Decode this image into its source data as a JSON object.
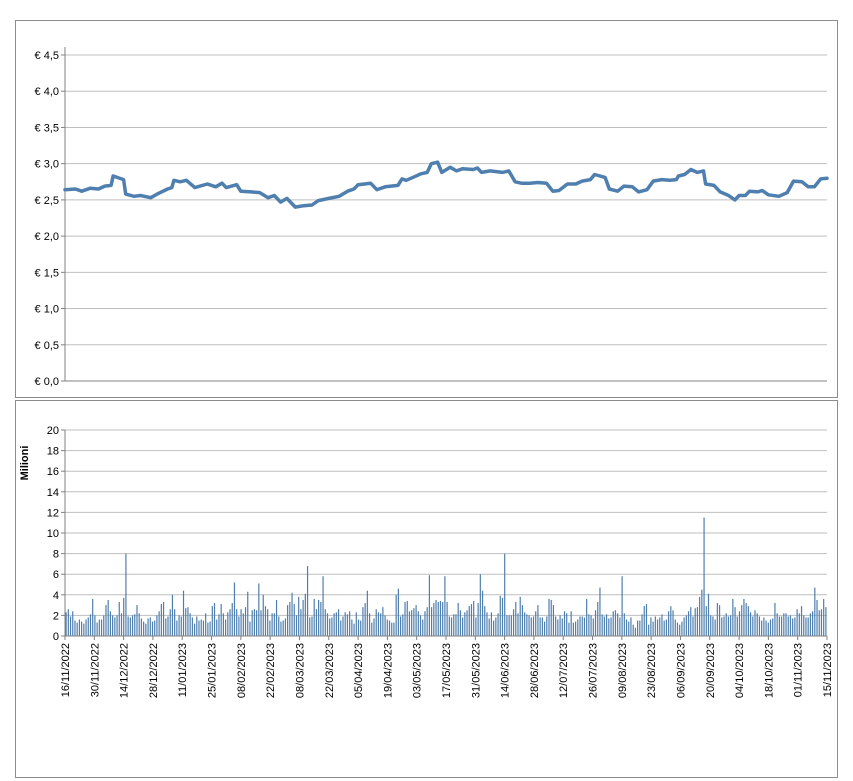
{
  "colors": {
    "price_line": "#4f7fae",
    "volume_bar": "#4f7fae",
    "grid": "#bfbfbf",
    "axis": "#808080"
  },
  "chart_data": [
    {
      "type": "line",
      "title": "",
      "xlabel": "",
      "ylabel": "",
      "ylim": [
        0,
        4.5
      ],
      "y_ticks": [
        "€ 0,0",
        "€ 0,5",
        "€ 1,0",
        "€ 1,5",
        "€ 2,0",
        "€ 2,5",
        "€ 3,0",
        "€ 3,5",
        "€ 4,0",
        "€ 4,5"
      ],
      "grid": true,
      "series": [
        {
          "points": [
            [
              "2022-11-16",
              2.64
            ],
            [
              "2022-11-21",
              2.65
            ],
            [
              "2022-11-24",
              2.62
            ],
            [
              "2022-11-28",
              2.66
            ],
            [
              "2022-12-02",
              2.65
            ],
            [
              "2022-12-05",
              2.69
            ],
            [
              "2022-12-08",
              2.7
            ],
            [
              "2022-12-09",
              2.83
            ],
            [
              "2022-12-14",
              2.78
            ],
            [
              "2022-12-15",
              2.58
            ],
            [
              "2022-12-19",
              2.55
            ],
            [
              "2022-12-22",
              2.56
            ],
            [
              "2022-12-27",
              2.53
            ],
            [
              "2022-12-30",
              2.58
            ],
            [
              "2023-01-04",
              2.65
            ],
            [
              "2023-01-06",
              2.67
            ],
            [
              "2023-01-07",
              2.77
            ],
            [
              "2023-01-10",
              2.75
            ],
            [
              "2023-01-13",
              2.77
            ],
            [
              "2023-01-17",
              2.67
            ],
            [
              "2023-01-23",
              2.72
            ],
            [
              "2023-01-27",
              2.68
            ],
            [
              "2023-01-30",
              2.73
            ],
            [
              "2023-02-01",
              2.67
            ],
            [
              "2023-02-06",
              2.71
            ],
            [
              "2023-02-08",
              2.62
            ],
            [
              "2023-02-13",
              2.61
            ],
            [
              "2023-02-17",
              2.6
            ],
            [
              "2023-02-21",
              2.53
            ],
            [
              "2023-02-24",
              2.56
            ],
            [
              "2023-02-27",
              2.47
            ],
            [
              "2023-03-02",
              2.52
            ],
            [
              "2023-03-06",
              2.4
            ],
            [
              "2023-03-10",
              2.42
            ],
            [
              "2023-03-14",
              2.43
            ],
            [
              "2023-03-17",
              2.49
            ],
            [
              "2023-03-22",
              2.52
            ],
            [
              "2023-03-27",
              2.55
            ],
            [
              "2023-03-31",
              2.62
            ],
            [
              "2023-04-03",
              2.65
            ],
            [
              "2023-04-05",
              2.71
            ],
            [
              "2023-04-11",
              2.73
            ],
            [
              "2023-04-14",
              2.64
            ],
            [
              "2023-04-18",
              2.68
            ],
            [
              "2023-04-24",
              2.7
            ],
            [
              "2023-04-26",
              2.79
            ],
            [
              "2023-04-28",
              2.77
            ],
            [
              "2023-05-02",
              2.82
            ],
            [
              "2023-05-05",
              2.86
            ],
            [
              "2023-05-08",
              2.88
            ],
            [
              "2023-05-10",
              3.0
            ],
            [
              "2023-05-13",
              3.02
            ],
            [
              "2023-05-15",
              2.88
            ],
            [
              "2023-05-19",
              2.95
            ],
            [
              "2023-05-22",
              2.9
            ],
            [
              "2023-05-25",
              2.93
            ],
            [
              "2023-05-30",
              2.92
            ],
            [
              "2023-06-01",
              2.94
            ],
            [
              "2023-06-03",
              2.88
            ],
            [
              "2023-06-07",
              2.9
            ],
            [
              "2023-06-13",
              2.88
            ],
            [
              "2023-06-16",
              2.9
            ],
            [
              "2023-06-19",
              2.75
            ],
            [
              "2023-06-22",
              2.73
            ],
            [
              "2023-06-26",
              2.73
            ],
            [
              "2023-06-30",
              2.74
            ],
            [
              "2023-07-04",
              2.73
            ],
            [
              "2023-07-07",
              2.62
            ],
            [
              "2023-07-10",
              2.63
            ],
            [
              "2023-07-14",
              2.72
            ],
            [
              "2023-07-18",
              2.72
            ],
            [
              "2023-07-21",
              2.76
            ],
            [
              "2023-07-25",
              2.78
            ],
            [
              "2023-07-27",
              2.85
            ],
            [
              "2023-08-01",
              2.81
            ],
            [
              "2023-08-03",
              2.65
            ],
            [
              "2023-08-07",
              2.62
            ],
            [
              "2023-08-10",
              2.69
            ],
            [
              "2023-08-14",
              2.68
            ],
            [
              "2023-08-17",
              2.61
            ],
            [
              "2023-08-21",
              2.64
            ],
            [
              "2023-08-24",
              2.76
            ],
            [
              "2023-08-28",
              2.78
            ],
            [
              "2023-09-01",
              2.77
            ],
            [
              "2023-09-04",
              2.78
            ],
            [
              "2023-09-05",
              2.83
            ],
            [
              "2023-09-08",
              2.85
            ],
            [
              "2023-09-11",
              2.92
            ],
            [
              "2023-09-14",
              2.88
            ],
            [
              "2023-09-17",
              2.9
            ],
            [
              "2023-09-18",
              2.72
            ],
            [
              "2023-09-22",
              2.7
            ],
            [
              "2023-09-25",
              2.61
            ],
            [
              "2023-09-29",
              2.56
            ],
            [
              "2023-10-02",
              2.5
            ],
            [
              "2023-10-04",
              2.56
            ],
            [
              "2023-10-07",
              2.56
            ],
            [
              "2023-10-09",
              2.62
            ],
            [
              "2023-10-13",
              2.61
            ],
            [
              "2023-10-15",
              2.63
            ],
            [
              "2023-10-18",
              2.57
            ],
            [
              "2023-10-23",
              2.55
            ],
            [
              "2023-10-27",
              2.6
            ],
            [
              "2023-10-30",
              2.76
            ],
            [
              "2023-11-03",
              2.75
            ],
            [
              "2023-11-06",
              2.68
            ],
            [
              "2023-11-09",
              2.68
            ],
            [
              "2023-11-12",
              2.79
            ],
            [
              "2023-11-15",
              2.8
            ]
          ]
        }
      ]
    },
    {
      "type": "bar",
      "title": "",
      "xlabel": "",
      "ylabel": "Milioni",
      "ylim": [
        0,
        20
      ],
      "y_ticks": [
        "0",
        "2",
        "4",
        "6",
        "8",
        "10",
        "12",
        "14",
        "16",
        "18",
        "20"
      ],
      "x_tick_labels": [
        "16/11/2022",
        "30/11/2022",
        "14/12/2022",
        "28/12/2022",
        "11/01/2023",
        "25/01/2023",
        "08/02/2023",
        "22/02/2023",
        "08/03/2023",
        "22/03/2023",
        "05/04/2023",
        "19/04/2023",
        "03/05/2023",
        "17/05/2023",
        "31/05/2023",
        "14/06/2023",
        "28/06/2023",
        "12/07/2023",
        "26/07/2023",
        "09/08/2023",
        "23/08/2023",
        "06/09/2023",
        "20/09/2023",
        "04/10/2023",
        "18/10/2023",
        "01/11/2023",
        "15/11/2023"
      ],
      "grid": true,
      "values": [
        2.3,
        2.6,
        1.9,
        2.4,
        1.5,
        1.3,
        1.6,
        1.4,
        1.2,
        1.6,
        1.8,
        2.1,
        3.6,
        2.0,
        1.3,
        1.6,
        1.6,
        2.0,
        3.0,
        3.5,
        2.4,
        2.0,
        1.8,
        2.0,
        3.3,
        2.2,
        3.7,
        8.0,
        1.9,
        1.8,
        2.0,
        2.1,
        3.0,
        2.2,
        1.7,
        1.4,
        1.2,
        1.7,
        1.8,
        1.4,
        1.5,
        2.0,
        2.4,
        3.1,
        3.3,
        1.7,
        1.9,
        2.6,
        4.0,
        2.6,
        1.5,
        2.0,
        1.9,
        4.4,
        2.7,
        2.8,
        2.2,
        1.8,
        1.2,
        1.9,
        1.5,
        1.6,
        1.5,
        2.2,
        1.3,
        1.4,
        2.9,
        3.2,
        1.6,
        2.1,
        3.1,
        2.2,
        1.6,
        2.3,
        2.6,
        3.2,
        5.2,
        2.6,
        1.9,
        2.6,
        2.2,
        2.8,
        4.3,
        1.4,
        2.5,
        2.6,
        2.5,
        5.1,
        2.5,
        4.0,
        2.9,
        2.6,
        1.5,
        2.2,
        2.2,
        3.5,
        1.9,
        1.4,
        1.5,
        1.7,
        3.0,
        3.3,
        4.2,
        3.1,
        2.0,
        3.8,
        2.6,
        3.5,
        4.1,
        6.8,
        1.8,
        1.9,
        3.6,
        2.6,
        3.5,
        3.3,
        5.8,
        2.6,
        2.2,
        1.7,
        1.8,
        2.2,
        2.3,
        2.6,
        1.5,
        1.9,
        2.3,
        2.1,
        2.4,
        1.6,
        1.2,
        2.3,
        1.6,
        1.5,
        2.8,
        3.2,
        4.4,
        2.2,
        1.3,
        1.7,
        2.6,
        2.3,
        2.2,
        2.8,
        2.0,
        1.6,
        1.5,
        1.3,
        1.3,
        4.0,
        4.6,
        1.9,
        2.1,
        3.3,
        3.4,
        2.4,
        2.5,
        2.7,
        3.0,
        2.4,
        2.0,
        1.6,
        2.4,
        2.8,
        5.9,
        2.8,
        3.2,
        3.5,
        3.3,
        3.4,
        3.3,
        5.8,
        3.3,
        1.9,
        1.8,
        2.1,
        2.1,
        3.2,
        2.5,
        1.8,
        2.3,
        2.5,
        2.9,
        3.1,
        3.4,
        1.8,
        3.2,
        6.0,
        4.4,
        2.9,
        2.3,
        1.7,
        2.3,
        1.5,
        1.8,
        2.2,
        3.9,
        3.7,
        8.0,
        2.0,
        2.0,
        2.0,
        2.6,
        3.3,
        2.2,
        3.8,
        3.0,
        2.3,
        2.1,
        2.0,
        1.8,
        1.9,
        2.4,
        3.0,
        1.8,
        1.8,
        1.4,
        1.9,
        3.6,
        3.5,
        3.0,
        1.9,
        1.6,
        2.0,
        1.7,
        2.4,
        2.2,
        1.3,
        2.4,
        1.3,
        1.4,
        1.6,
        1.9,
        1.9,
        1.8,
        3.6,
        2.1,
        2.0,
        1.7,
        2.5,
        3.3,
        4.7,
        2.1,
        1.9,
        2.1,
        1.7,
        1.8,
        2.4,
        2.5,
        2.2,
        1.8,
        5.8,
        2.2,
        1.6,
        1.4,
        1.8,
        1.1,
        0.8,
        1.5,
        1.5,
        2.1,
        2.9,
        3.1,
        1.1,
        1.8,
        1.4,
        1.9,
        1.6,
        1.8,
        2.1,
        1.5,
        1.6,
        2.4,
        2.9,
        2.5,
        1.6,
        1.3,
        1.1,
        1.4,
        1.8,
        2.0,
        2.4,
        2.8,
        1.9,
        2.7,
        2.8,
        3.8,
        4.5,
        11.5,
        2.9,
        4.1,
        2.0,
        1.9,
        1.6,
        3.2,
        3.0,
        1.8,
        1.9,
        2.2,
        1.9,
        2.0,
        3.6,
        2.8,
        1.9,
        2.4,
        3.0,
        3.6,
        3.2,
        2.9,
        2.3,
        1.9,
        2.5,
        2.2,
        1.9,
        1.5,
        1.8,
        1.5,
        1.3,
        1.6,
        1.7,
        3.2,
        2.2,
        1.9,
        1.9,
        2.2,
        2.2,
        1.9,
        2.0,
        1.7,
        1.8,
        2.6,
        2.2,
        2.9,
        2.0,
        1.8,
        1.8,
        2.2,
        2.4,
        4.7,
        3.5,
        2.5,
        2.6,
        3.6,
        2.8
      ]
    }
  ]
}
